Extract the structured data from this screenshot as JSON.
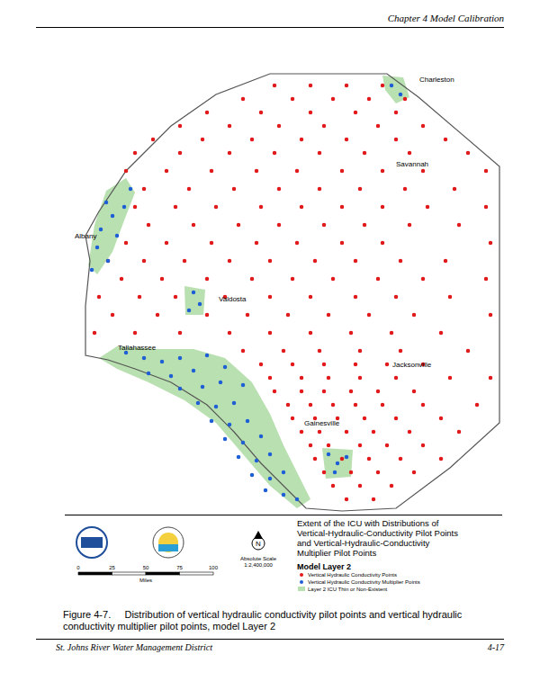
{
  "header": {
    "chapter": "Chapter 4 Model Calibration"
  },
  "chart_data": {
    "type": "scatter",
    "tick_labels": false,
    "grid": false,
    "xlim": [
      70,
      560
    ],
    "ylim": [
      665,
      80
    ],
    "series": [
      {
        "name": "Vertical Hydraulic Conductivity Points",
        "color": "#e31a1c",
        "marker": "circle",
        "x": [
          305,
          345,
          385,
          425,
          270,
          325,
          370,
          410,
          450,
          230,
          290,
          345,
          395,
          440,
          200,
          255,
          310,
          360,
          420,
          470,
          170,
          225,
          280,
          335,
          385,
          440,
          495,
          150,
          200,
          255,
          305,
          355,
          405,
          455,
          520,
          140,
          185,
          235,
          285,
          330,
          380,
          425,
          470,
          540,
          160,
          210,
          260,
          310,
          355,
          400,
          450,
          505,
          150,
          195,
          240,
          290,
          335,
          380,
          425,
          475,
          540,
          165,
          215,
          265,
          310,
          360,
          405,
          455,
          510,
          140,
          185,
          235,
          285,
          330,
          380,
          425,
          545,
          120,
          160,
          205,
          255,
          300,
          350,
          395,
          445,
          495,
          135,
          180,
          230,
          280,
          325,
          370,
          420,
          470,
          540,
          110,
          155,
          195,
          250,
          300,
          345,
          395,
          440,
          500,
          125,
          175,
          230,
          275,
          320,
          365,
          410,
          460,
          545,
          105,
          150,
          200,
          255,
          300,
          345,
          390,
          435,
          490,
          270,
          315,
          355,
          400,
          445,
          520,
          290,
          325,
          360,
          395,
          430,
          470,
          300,
          335,
          365,
          400,
          440,
          500,
          545,
          305,
          335,
          360,
          390,
          420,
          460,
          320,
          345,
          370,
          395,
          425,
          470,
          530,
          325,
          350,
          375,
          405,
          440,
          490,
          335,
          355,
          385,
          415,
          455,
          510,
          345,
          365,
          400,
          430,
          470,
          350,
          380,
          410,
          445,
          490,
          360,
          390,
          420,
          460,
          370,
          400,
          435,
          385,
          415
        ],
        "y": [
          95,
          95,
          95,
          95,
          110,
          110,
          110,
          110,
          110,
          125,
          125,
          125,
          125,
          125,
          140,
          140,
          140,
          140,
          140,
          140,
          155,
          155,
          155,
          155,
          155,
          155,
          155,
          170,
          170,
          170,
          170,
          170,
          170,
          170,
          170,
          190,
          190,
          190,
          190,
          190,
          190,
          190,
          190,
          190,
          210,
          210,
          210,
          210,
          210,
          210,
          210,
          210,
          230,
          230,
          230,
          230,
          230,
          230,
          230,
          230,
          230,
          250,
          250,
          250,
          250,
          250,
          250,
          250,
          250,
          270,
          270,
          270,
          270,
          270,
          270,
          270,
          270,
          290,
          290,
          290,
          290,
          290,
          290,
          290,
          290,
          290,
          310,
          310,
          310,
          310,
          310,
          310,
          310,
          310,
          310,
          330,
          330,
          330,
          330,
          330,
          330,
          330,
          330,
          330,
          350,
          350,
          350,
          350,
          350,
          350,
          350,
          350,
          350,
          370,
          370,
          370,
          370,
          370,
          370,
          370,
          370,
          370,
          390,
          390,
          390,
          390,
          390,
          390,
          405,
          405,
          405,
          405,
          405,
          405,
          420,
          420,
          420,
          420,
          420,
          420,
          420,
          435,
          435,
          435,
          435,
          435,
          435,
          450,
          450,
          450,
          450,
          450,
          450,
          450,
          465,
          465,
          465,
          465,
          465,
          465,
          480,
          480,
          480,
          480,
          480,
          480,
          495,
          495,
          495,
          495,
          495,
          510,
          510,
          510,
          510,
          510,
          525,
          525,
          525,
          525,
          540,
          540,
          540,
          555,
          555
        ]
      },
      {
        "name": "Vertical Hydraulic Conductivity Multiplier Points",
        "color": "#1f5fd6",
        "marker": "circle",
        "x": [
          118,
          125,
          112,
          130,
          108,
          120,
          138,
          145,
          102,
          215,
          222,
          210,
          140,
          160,
          180,
          200,
          230,
          165,
          190,
          215,
          250,
          200,
          225,
          245,
          270,
          220,
          240,
          260,
          235,
          255,
          275,
          250,
          270,
          290,
          265,
          285,
          300,
          280,
          300,
          315,
          295,
          315,
          330,
          365,
          375,
          385,
          372,
          435,
          445
        ],
        "y": [
          225,
          240,
          255,
          262,
          275,
          290,
          230,
          210,
          300,
          325,
          338,
          345,
          392,
          398,
          402,
          398,
          395,
          415,
          418,
          412,
          408,
          432,
          430,
          425,
          428,
          448,
          452,
          448,
          468,
          472,
          468,
          488,
          492,
          485,
          508,
          512,
          505,
          528,
          532,
          525,
          545,
          550,
          555,
          505,
          515,
          508,
          525,
          95,
          105
        ]
      }
    ],
    "area_label": "Layer 2 ICU Thin or Non-Existent",
    "annotations": [
      {
        "text": "Charleston",
        "x": 485,
        "y": 88
      },
      {
        "text": "Savannah",
        "x": 458,
        "y": 182
      },
      {
        "text": "Albany",
        "x": 95,
        "y": 262
      },
      {
        "text": "Valdosta",
        "x": 258,
        "y": 332
      },
      {
        "text": "Tallahassee",
        "x": 152,
        "y": 386
      },
      {
        "text": "Jacksonville",
        "x": 458,
        "y": 405
      },
      {
        "text": "Gainesville",
        "x": 358,
        "y": 470
      }
    ]
  },
  "legend_box": {
    "title": [
      "Extent of the ICU with Distributions of",
      "Vertical-Hydraulic-Conductivity Pilot Points",
      "and Vertical-Hydraulic-Conductivity",
      "Multiplier Pilot Points"
    ],
    "layer": "Model Layer 2",
    "north": "N",
    "scale_ticks": [
      0,
      25,
      50,
      75,
      100
    ],
    "scale_unit": "Miles",
    "scale_text": [
      "Absolute Scale",
      "1:2,400,000"
    ]
  },
  "caption": {
    "label": "Figure 4-7.",
    "text": "Distribution of vertical hydraulic conductivity pilot points and vertical hydraulic conductivity multiplier pilot points, model Layer 2"
  },
  "footer": {
    "left": "St. Johns River Water Management District",
    "right": "4-17"
  }
}
